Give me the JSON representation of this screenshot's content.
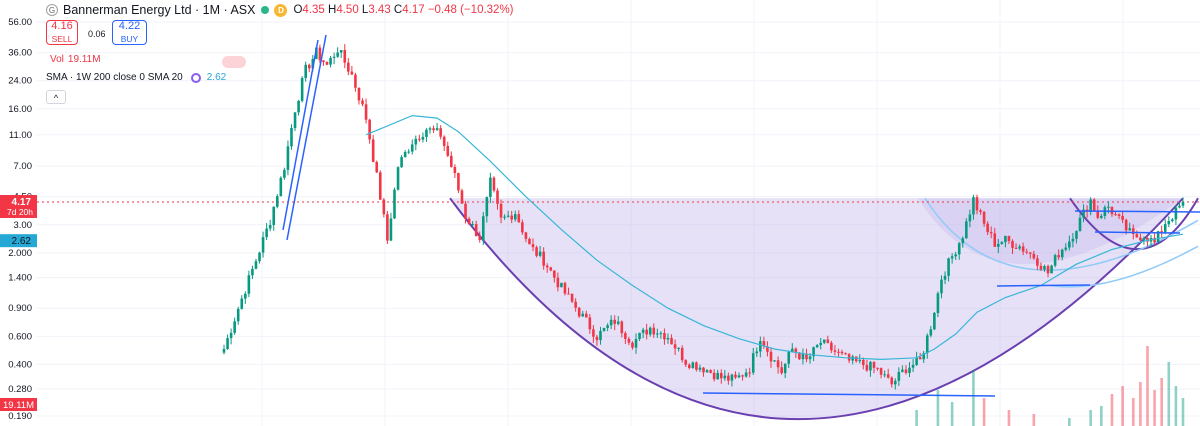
{
  "header": {
    "logo_glyph": "G",
    "title": "Bannerman Energy Ltd · 1M · ASX",
    "badge": "D",
    "open_label": "O",
    "open": "4.35",
    "high_label": "H",
    "high": "4.50",
    "low_label": "L",
    "low": "3.43",
    "close_label": "C",
    "close": "4.17",
    "change": "−0.48 (−10.32%)"
  },
  "trade": {
    "sell_price": "4.16",
    "sell_label": "SELL",
    "spread": "0.06",
    "buy_price": "4.22",
    "buy_label": "BUY"
  },
  "indicators": {
    "vol_label": "Vol",
    "vol_value": "19.11M",
    "sma_label": "SMA · 1W 200 close 0 SMA 20",
    "sma_value": "2.62",
    "collapse_glyph": "^"
  },
  "colors": {
    "up": "#089981",
    "down": "#f23645",
    "sma": "#38b6d8",
    "cup": "#7e57c2",
    "fill": "#b8a9e8",
    "line": "#2962ff",
    "arc": "#90caf9"
  },
  "chart_data": {
    "type": "candlestick",
    "scale": "log",
    "ylim": [
      0.19,
      56
    ],
    "y_ticks": [
      "56.00",
      "36.00",
      "24.00",
      "16.00",
      "11.00",
      "7.00",
      "4.50",
      "3.00",
      "2.000",
      "1.400",
      "0.900",
      "0.600",
      "0.400",
      "0.280",
      "0.190"
    ],
    "last_price": {
      "value": 4.17,
      "label": "4.17",
      "countdown": "7d 20h"
    },
    "sma_price": {
      "value": 2.62,
      "label": "2.62"
    },
    "volume_label": "19.11M",
    "anchors": [
      [
        0,
        0.5
      ],
      [
        4,
        0.9
      ],
      [
        9,
        1.8
      ],
      [
        13,
        3.2
      ],
      [
        17,
        7
      ],
      [
        20,
        16
      ],
      [
        23,
        28
      ],
      [
        26,
        36
      ],
      [
        29,
        30
      ],
      [
        32,
        38
      ],
      [
        36,
        26
      ],
      [
        40,
        14
      ],
      [
        44,
        4.5
      ],
      [
        46,
        2.4
      ],
      [
        49,
        7
      ],
      [
        53,
        10
      ],
      [
        57,
        12
      ],
      [
        61,
        11
      ],
      [
        65,
        6
      ],
      [
        68,
        3.4
      ],
      [
        72,
        2.5
      ],
      [
        75,
        5.5
      ],
      [
        78,
        3.2
      ],
      [
        82,
        3.6
      ],
      [
        86,
        2.2
      ],
      [
        90,
        1.8
      ],
      [
        95,
        1.2
      ],
      [
        100,
        0.85
      ],
      [
        105,
        0.6
      ],
      [
        110,
        0.75
      ],
      [
        115,
        0.55
      ],
      [
        120,
        0.68
      ],
      [
        125,
        0.6
      ],
      [
        130,
        0.42
      ],
      [
        135,
        0.38
      ],
      [
        140,
        0.33
      ],
      [
        144,
        0.32
      ],
      [
        148,
        0.38
      ],
      [
        151,
        0.6
      ],
      [
        154,
        0.45
      ],
      [
        157,
        0.36
      ],
      [
        160,
        0.5
      ],
      [
        164,
        0.42
      ],
      [
        168,
        0.55
      ],
      [
        172,
        0.48
      ],
      [
        176,
        0.42
      ],
      [
        180,
        0.4
      ],
      [
        184,
        0.37
      ],
      [
        188,
        0.3
      ],
      [
        192,
        0.38
      ],
      [
        196,
        0.42
      ],
      [
        199,
        0.7
      ],
      [
        202,
        1.4
      ],
      [
        205,
        1.9
      ],
      [
        208,
        2.6
      ],
      [
        211,
        4.3
      ],
      [
        214,
        3.0
      ],
      [
        217,
        2.3
      ],
      [
        220,
        2.4
      ],
      [
        224,
        2.2
      ],
      [
        228,
        1.9
      ],
      [
        232,
        1.5
      ],
      [
        235,
        2.0
      ],
      [
        238,
        2.4
      ],
      [
        241,
        3.2
      ],
      [
        244,
        4.3
      ],
      [
        246,
        3.4
      ],
      [
        249,
        3.9
      ],
      [
        253,
        3.0
      ],
      [
        256,
        2.5
      ],
      [
        259,
        2.6
      ],
      [
        262,
        2.3
      ],
      [
        265,
        3.1
      ],
      [
        268,
        3.6
      ],
      [
        270,
        4.17
      ]
    ],
    "sma_points": [
      [
        0,
        0.5
      ],
      [
        20,
        4
      ],
      [
        40,
        11
      ],
      [
        53,
        14.5
      ],
      [
        60,
        14
      ],
      [
        66,
        11.5
      ],
      [
        75,
        7.5
      ],
      [
        85,
        4.5
      ],
      [
        95,
        2.8
      ],
      [
        105,
        1.8
      ],
      [
        115,
        1.25
      ],
      [
        125,
        0.9
      ],
      [
        135,
        0.7
      ],
      [
        145,
        0.58
      ],
      [
        155,
        0.5
      ],
      [
        165,
        0.46
      ],
      [
        175,
        0.44
      ],
      [
        185,
        0.43
      ],
      [
        195,
        0.44
      ],
      [
        200,
        0.5
      ],
      [
        206,
        0.62
      ],
      [
        212,
        0.85
      ],
      [
        220,
        1.05
      ],
      [
        230,
        1.25
      ],
      [
        240,
        1.7
      ],
      [
        250,
        2.1
      ],
      [
        260,
        2.4
      ],
      [
        270,
        2.62
      ]
    ],
    "volume": [
      [
        195,
        0.2
      ],
      [
        201,
        0.45
      ],
      [
        205,
        0.3
      ],
      [
        211,
        0.7
      ],
      [
        214,
        0.35
      ],
      [
        221,
        0.2
      ],
      [
        228,
        0.15
      ],
      [
        238,
        0.1
      ],
      [
        244,
        0.2
      ],
      [
        247,
        0.25
      ],
      [
        250,
        0.4
      ],
      [
        253,
        0.5
      ],
      [
        256,
        0.35
      ],
      [
        258,
        0.55
      ],
      [
        260,
        1.0
      ],
      [
        262,
        0.45
      ],
      [
        264,
        0.6
      ],
      [
        266,
        0.8
      ],
      [
        268,
        0.5
      ],
      [
        270,
        0.35
      ]
    ]
  }
}
